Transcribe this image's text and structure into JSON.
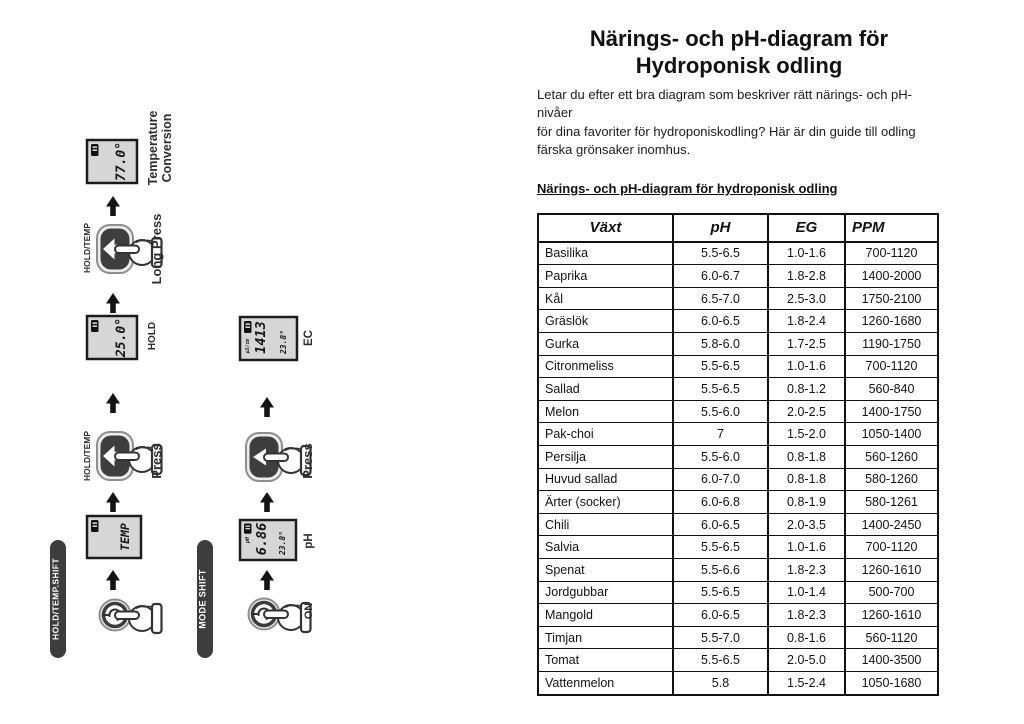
{
  "title": {
    "line1": "Närings- och pH-diagram för",
    "line2": "Hydroponisk odling"
  },
  "intro": {
    "lines": [
      "Letar du efter ett bra diagram som beskriver rätt närings- och pH-nivåer",
      "för dina favoriter för hydroponiskodling?  Här är din guide till odling",
      "färska grönsaker inomhus."
    ]
  },
  "subtitle": "Närings- och pH-diagram för hydroponisk odling",
  "table": {
    "headers": [
      "Växt",
      "pH",
      "EG",
      "PPM"
    ],
    "rows": [
      [
        "Basilika",
        "5.5-6.5",
        "1.0-1.6",
        "700-1120"
      ],
      [
        "Paprika",
        "6.0-6.7",
        "1.8-2.8",
        "1400-2000"
      ],
      [
        "Kål",
        "6.5-7.0",
        "2.5-3.0",
        "1750-2100"
      ],
      [
        "Gräslök",
        "6.0-6.5",
        "1.8-2.4",
        "1260-1680"
      ],
      [
        "Gurka",
        "5.8-6.0",
        "1.7-2.5",
        "1190-1750"
      ],
      [
        "Citronmeliss",
        "5.5-6.5",
        "1.0-1.6",
        "700-1120"
      ],
      [
        "Sallad",
        "5.5-6.5",
        "0.8-1.2",
        "560-840"
      ],
      [
        "Melon",
        "5.5-6.0",
        "2.0-2.5",
        "1400-1750"
      ],
      [
        "Pak-choi",
        "7",
        "1.5-2.0",
        "1050-1400"
      ],
      [
        "Persilja",
        "5.5-6.0",
        "0.8-1.8",
        "560-1260"
      ],
      [
        "Huvud sallad",
        "6.0-7.0",
        "0.8-1.8",
        "580-1260"
      ],
      [
        "Ärter (socker)",
        "6.0-6.8",
        "0.8-1.9",
        "580-1261"
      ],
      [
        "Chili",
        "6.0-6.5",
        "2.0-3.5",
        "1400-2450"
      ],
      [
        "Salvia",
        "5.5-6.5",
        "1.0-1.6",
        "700-1120"
      ],
      [
        "Spenat",
        "5.5-6.6",
        "1.8-2.3",
        "1260-1610"
      ],
      [
        "Jordgubbar",
        "5.5-6.5",
        "1.0-1.4",
        "500-700"
      ],
      [
        "Mangold",
        "6.0-6.5",
        "1.8-2.3",
        "1260-1610"
      ],
      [
        "Timjan",
        "5.5-7.0",
        "0.8-1.6",
        "560-1120"
      ],
      [
        "Tomat",
        "5.5-6.5",
        "2.0-5.0",
        "1400-3500"
      ],
      [
        "Vattenmelon",
        "5.8",
        "1.5-2.4",
        "1050-1680"
      ]
    ]
  },
  "diagram": {
    "pills": {
      "left": "HOLD/TEMP.SHIFT",
      "right": "MODE SHIFT"
    },
    "temp_flow": {
      "hold_temp_label": "HOLD/TEMP",
      "press_action": "Press",
      "long_press_action": "Long Press",
      "lcd_temp_value": "TEMP",
      "lcd_hold_value": "25.0°",
      "hold_label": "HOLD",
      "lcd_fahrenheit_value": "77.0°",
      "result_label_line1": "Temperature",
      "result_label_line2": "Conversion"
    },
    "mode_flow": {
      "on_label": "ON",
      "lcd_ph_value": "6.86",
      "lcd_ph_temp": "23.8°",
      "lcd_ph_unit": "pH",
      "ph_label": "pH",
      "press_action": "Press",
      "lcd_ec_value": "1413",
      "lcd_ec_temp": "23.8°",
      "lcd_ec_unit": "µS/cm",
      "ec_label": "EC"
    }
  }
}
